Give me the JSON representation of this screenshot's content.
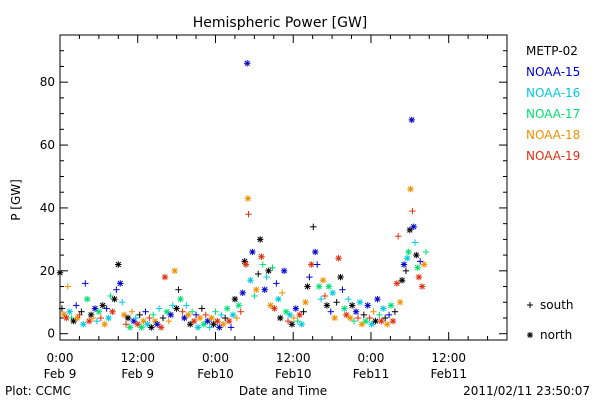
{
  "chart_data": {
    "type": "scatter",
    "title": "Hemispheric Power [GW]",
    "ylabel": "P [GW]",
    "xlabel": "Date and Time",
    "ylim": [
      -2,
      95
    ],
    "xlim_hours": [
      0,
      69
    ],
    "yticks": [
      0,
      20,
      40,
      60,
      80
    ],
    "xticks": [
      {
        "hour": 0,
        "line1": "0:00",
        "line2": "Feb 9"
      },
      {
        "hour": 12,
        "line1": "12:00",
        "line2": "Feb 9"
      },
      {
        "hour": 24,
        "line1": "0:00",
        "line2": "Feb10"
      },
      {
        "hour": 36,
        "line1": "12:00",
        "line2": "Feb10"
      },
      {
        "hour": 48,
        "line1": "0:00",
        "line2": "Feb11"
      },
      {
        "hour": 60,
        "line1": "12:00",
        "line2": "Feb11"
      }
    ],
    "legend_position": "right",
    "series": [
      {
        "name": "METP-02",
        "color": "#000000"
      },
      {
        "name": "NOAA-15",
        "color": "#0000cc"
      },
      {
        "name": "NOAA-16",
        "color": "#00c8e0"
      },
      {
        "name": "NOAA-17",
        "color": "#00e070"
      },
      {
        "name": "NOAA-18",
        "color": "#f09000"
      },
      {
        "name": "NOAA-19",
        "color": "#e03010"
      }
    ],
    "markers": {
      "plus": "south",
      "star": "north"
    },
    "points": [
      [
        0.0,
        19.4,
        0,
        1
      ],
      [
        0.3,
        8.0,
        0,
        0
      ],
      [
        0.6,
        6.2,
        4,
        1
      ],
      [
        1.0,
        5.0,
        5,
        1
      ],
      [
        1.2,
        15.0,
        4,
        0
      ],
      [
        1.5,
        7.0,
        2,
        1
      ],
      [
        1.8,
        5.0,
        3,
        0
      ],
      [
        2.1,
        4.0,
        0,
        1
      ],
      [
        2.5,
        9.0,
        1,
        0
      ],
      [
        2.7,
        5.0,
        4,
        1
      ],
      [
        3.0,
        6.0,
        5,
        0
      ],
      [
        3.3,
        7.0,
        0,
        0
      ],
      [
        3.6,
        3.0,
        2,
        1
      ],
      [
        3.9,
        16.0,
        1,
        0
      ],
      [
        4.2,
        11.0,
        3,
        1
      ],
      [
        4.5,
        4.0,
        5,
        1
      ],
      [
        4.8,
        6.0,
        0,
        1
      ],
      [
        5.1,
        5.0,
        4,
        0
      ],
      [
        5.4,
        8.0,
        1,
        1
      ],
      [
        5.7,
        4.0,
        2,
        0
      ],
      [
        6.0,
        7.0,
        3,
        1
      ],
      [
        6.3,
        5.0,
        5,
        0
      ],
      [
        6.6,
        9.0,
        0,
        1
      ],
      [
        6.9,
        3.0,
        4,
        1
      ],
      [
        7.2,
        8.0,
        1,
        0
      ],
      [
        7.5,
        5.0,
        2,
        1
      ],
      [
        7.8,
        12.0,
        3,
        0
      ],
      [
        8.1,
        7.0,
        5,
        1
      ],
      [
        8.4,
        11.0,
        0,
        1
      ],
      [
        8.7,
        14.0,
        1,
        0
      ],
      [
        9.0,
        22.0,
        0,
        1
      ],
      [
        9.3,
        16.0,
        1,
        1
      ],
      [
        9.6,
        10.0,
        2,
        0
      ],
      [
        9.9,
        6.0,
        4,
        1
      ],
      [
        10.2,
        3.0,
        5,
        0
      ],
      [
        10.5,
        5.0,
        0,
        1
      ],
      [
        10.8,
        2.0,
        3,
        1
      ],
      [
        11.1,
        7.0,
        4,
        0
      ],
      [
        11.4,
        4.0,
        1,
        1
      ],
      [
        11.7,
        5.0,
        2,
        0
      ],
      [
        12.0,
        3.0,
        5,
        1
      ],
      [
        12.3,
        6.0,
        0,
        0
      ],
      [
        12.6,
        2.0,
        3,
        1
      ],
      [
        12.9,
        4.0,
        4,
        1
      ],
      [
        13.2,
        7.0,
        1,
        0
      ],
      [
        13.5,
        3.0,
        2,
        1
      ],
      [
        13.8,
        5.0,
        5,
        0
      ],
      [
        14.1,
        2.0,
        0,
        1
      ],
      [
        14.4,
        6.0,
        3,
        0
      ],
      [
        14.7,
        4.0,
        4,
        1
      ],
      [
        15.0,
        3.0,
        1,
        1
      ],
      [
        15.3,
        8.0,
        2,
        0
      ],
      [
        15.6,
        2.0,
        5,
        1
      ],
      [
        15.9,
        5.0,
        0,
        0
      ],
      [
        16.2,
        18.0,
        5,
        1
      ],
      [
        16.5,
        7.0,
        3,
        1
      ],
      [
        16.8,
        4.0,
        4,
        0
      ],
      [
        17.1,
        6.0,
        1,
        1
      ],
      [
        17.4,
        9.0,
        2,
        0
      ],
      [
        17.7,
        20.0,
        4,
        1
      ],
      [
        18.0,
        8.0,
        0,
        1
      ],
      [
        18.3,
        14.0,
        0,
        0
      ],
      [
        18.6,
        11.0,
        3,
        1
      ],
      [
        18.9,
        7.0,
        5,
        0
      ],
      [
        19.2,
        5.0,
        1,
        1
      ],
      [
        19.5,
        9.0,
        2,
        0
      ],
      [
        19.8,
        6.0,
        4,
        1
      ],
      [
        20.1,
        3.0,
        0,
        1
      ],
      [
        20.4,
        7.0,
        3,
        0
      ],
      [
        20.7,
        4.0,
        5,
        1
      ],
      [
        21.0,
        6.0,
        1,
        0
      ],
      [
        21.3,
        2.0,
        2,
        1
      ],
      [
        21.6,
        5.0,
        4,
        1
      ],
      [
        21.9,
        8.0,
        0,
        0
      ],
      [
        22.2,
        3.0,
        3,
        1
      ],
      [
        22.5,
        6.0,
        5,
        0
      ],
      [
        22.8,
        4.0,
        1,
        1
      ],
      [
        23.1,
        2.0,
        2,
        0
      ],
      [
        23.4,
        5.0,
        4,
        1
      ],
      [
        23.7,
        3.0,
        0,
        1
      ],
      [
        24.0,
        7.0,
        3,
        0
      ],
      [
        24.3,
        4.0,
        5,
        1
      ],
      [
        24.6,
        2.0,
        1,
        1
      ],
      [
        24.9,
        6.0,
        2,
        0
      ],
      [
        25.2,
        3.0,
        4,
        1
      ],
      [
        25.5,
        5.0,
        0,
        0
      ],
      [
        25.8,
        8.0,
        3,
        1
      ],
      [
        26.1,
        4.0,
        5,
        1
      ],
      [
        26.4,
        2.0,
        1,
        0
      ],
      [
        26.7,
        6.0,
        2,
        1
      ],
      [
        27.0,
        11.0,
        0,
        1
      ],
      [
        27.3,
        5.0,
        4,
        0
      ],
      [
        27.6,
        9.0,
        3,
        1
      ],
      [
        27.9,
        7.0,
        5,
        0
      ],
      [
        28.2,
        13.0,
        1,
        1
      ],
      [
        28.5,
        23.0,
        0,
        1
      ],
      [
        28.7,
        22.0,
        5,
        1
      ],
      [
        28.9,
        86.0,
        1,
        1
      ],
      [
        29.0,
        43.0,
        4,
        1
      ],
      [
        29.1,
        38.0,
        5,
        0
      ],
      [
        29.4,
        17.0,
        2,
        1
      ],
      [
        29.7,
        26.0,
        1,
        1
      ],
      [
        30.0,
        12.0,
        3,
        0
      ],
      [
        30.3,
        14.0,
        4,
        1
      ],
      [
        30.6,
        19.0,
        0,
        0
      ],
      [
        30.9,
        30.0,
        0,
        1
      ],
      [
        31.1,
        24.5,
        5,
        1
      ],
      [
        31.3,
        22.0,
        3,
        0
      ],
      [
        31.6,
        14.0,
        1,
        1
      ],
      [
        31.9,
        18.0,
        2,
        0
      ],
      [
        32.2,
        20.0,
        0,
        1
      ],
      [
        32.5,
        9.0,
        4,
        1
      ],
      [
        32.8,
        21.0,
        3,
        0
      ],
      [
        33.1,
        8.0,
        5,
        1
      ],
      [
        33.4,
        16.0,
        1,
        0
      ],
      [
        33.7,
        11.0,
        2,
        1
      ],
      [
        34.0,
        5.0,
        0,
        1
      ],
      [
        34.3,
        13.0,
        4,
        0
      ],
      [
        34.6,
        20.0,
        1,
        1
      ],
      [
        34.9,
        7.0,
        3,
        1
      ],
      [
        35.2,
        4.0,
        5,
        0
      ],
      [
        35.5,
        6.0,
        2,
        1
      ],
      [
        35.8,
        3.0,
        0,
        1
      ],
      [
        36.1,
        5.0,
        4,
        0
      ],
      [
        36.4,
        8.0,
        1,
        1
      ],
      [
        36.7,
        4.0,
        3,
        0
      ],
      [
        37.0,
        6.0,
        5,
        1
      ],
      [
        37.3,
        3.0,
        2,
        1
      ],
      [
        37.6,
        7.0,
        0,
        0
      ],
      [
        37.9,
        10.0,
        4,
        1
      ],
      [
        38.2,
        15.0,
        0,
        1
      ],
      [
        38.5,
        18.0,
        1,
        0
      ],
      [
        38.8,
        22.0,
        5,
        1
      ],
      [
        39.1,
        34.0,
        0,
        0
      ],
      [
        39.4,
        26.0,
        1,
        1
      ],
      [
        39.7,
        22.0,
        1,
        0
      ],
      [
        40.0,
        15.0,
        3,
        1
      ],
      [
        40.3,
        11.0,
        2,
        0
      ],
      [
        40.6,
        17.0,
        4,
        1
      ],
      [
        40.9,
        12.0,
        5,
        0
      ],
      [
        41.2,
        9.0,
        0,
        1
      ],
      [
        41.5,
        15.0,
        3,
        1
      ],
      [
        41.8,
        7.0,
        1,
        0
      ],
      [
        42.1,
        13.0,
        2,
        1
      ],
      [
        42.4,
        5.0,
        4,
        1
      ],
      [
        42.7,
        10.0,
        0,
        0
      ],
      [
        43.0,
        24.0,
        5,
        1
      ],
      [
        43.3,
        18.0,
        0,
        1
      ],
      [
        43.6,
        14.0,
        1,
        0
      ],
      [
        43.9,
        8.0,
        3,
        1
      ],
      [
        44.2,
        6.0,
        5,
        1
      ],
      [
        44.5,
        11.0,
        2,
        0
      ],
      [
        44.8,
        5.0,
        4,
        1
      ],
      [
        45.1,
        9.0,
        0,
        1
      ],
      [
        45.4,
        4.0,
        3,
        0
      ],
      [
        45.7,
        7.0,
        1,
        1
      ],
      [
        46.0,
        5.0,
        5,
        0
      ],
      [
        46.3,
        10.0,
        2,
        1
      ],
      [
        46.6,
        3.0,
        4,
        1
      ],
      [
        46.9,
        6.0,
        0,
        0
      ],
      [
        47.2,
        4.0,
        3,
        1
      ],
      [
        47.5,
        9.0,
        1,
        1
      ],
      [
        47.8,
        5.0,
        5,
        0
      ],
      [
        48.1,
        3.0,
        2,
        1
      ],
      [
        48.4,
        7.0,
        4,
        0
      ],
      [
        48.7,
        4.0,
        0,
        1
      ],
      [
        49.0,
        11.0,
        1,
        1
      ],
      [
        49.3,
        6.0,
        3,
        0
      ],
      [
        49.6,
        4.0,
        5,
        1
      ],
      [
        49.9,
        8.0,
        2,
        1
      ],
      [
        50.2,
        5.0,
        0,
        0
      ],
      [
        50.5,
        3.0,
        4,
        1
      ],
      [
        50.8,
        6.0,
        1,
        0
      ],
      [
        51.1,
        9.0,
        3,
        1
      ],
      [
        51.4,
        4.0,
        5,
        1
      ],
      [
        51.7,
        7.0,
        0,
        0
      ],
      [
        52.0,
        16.0,
        5,
        1
      ],
      [
        52.2,
        31.0,
        5,
        0
      ],
      [
        52.5,
        10.0,
        4,
        1
      ],
      [
        52.8,
        17.0,
        0,
        1
      ],
      [
        53.1,
        22.0,
        1,
        1
      ],
      [
        53.4,
        20.0,
        0,
        0
      ],
      [
        53.6,
        24.0,
        2,
        1
      ],
      [
        53.8,
        26.0,
        3,
        1
      ],
      [
        54.0,
        33.0,
        0,
        1
      ],
      [
        54.1,
        46.0,
        4,
        1
      ],
      [
        54.3,
        68.0,
        1,
        1
      ],
      [
        54.4,
        39.0,
        5,
        0
      ],
      [
        54.6,
        34.0,
        1,
        1
      ],
      [
        54.8,
        29.0,
        2,
        0
      ],
      [
        55.0,
        25.0,
        0,
        1
      ],
      [
        55.2,
        21.0,
        3,
        1
      ],
      [
        55.4,
        18.0,
        5,
        1
      ],
      [
        55.6,
        23.0,
        1,
        0
      ],
      [
        55.9,
        15.0,
        5,
        1
      ],
      [
        56.2,
        22.0,
        4,
        1
      ],
      [
        56.5,
        26.0,
        3,
        0
      ]
    ]
  },
  "legend_markers": [
    {
      "symbol": "+",
      "label": "south"
    },
    {
      "symbol": "*",
      "label": "north"
    }
  ],
  "footer": {
    "plot_credit": "Plot: CCMC",
    "timestamp": "2011/02/11 23:50:07"
  }
}
